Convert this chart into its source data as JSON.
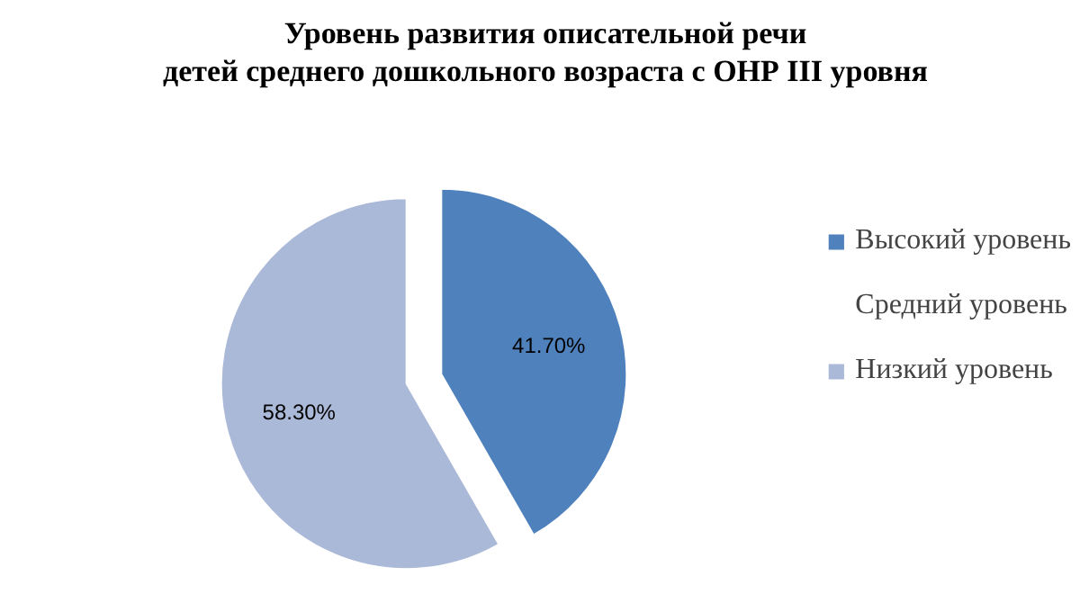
{
  "chart_data": {
    "type": "pie",
    "title": "Уровень развития описательной речи\nдетей среднего дошкольного возраста с ОНР III уровня",
    "categories": [
      "Высокий уровень",
      "Средний уровень",
      "Низкий уровень"
    ],
    "values": [
      41.7,
      0,
      58.3
    ],
    "colors": [
      "#4f81bd",
      "#ffffff",
      "#aab9d7"
    ],
    "value_labels": [
      "41.70%",
      null,
      "58.30%"
    ],
    "legend": "right"
  }
}
